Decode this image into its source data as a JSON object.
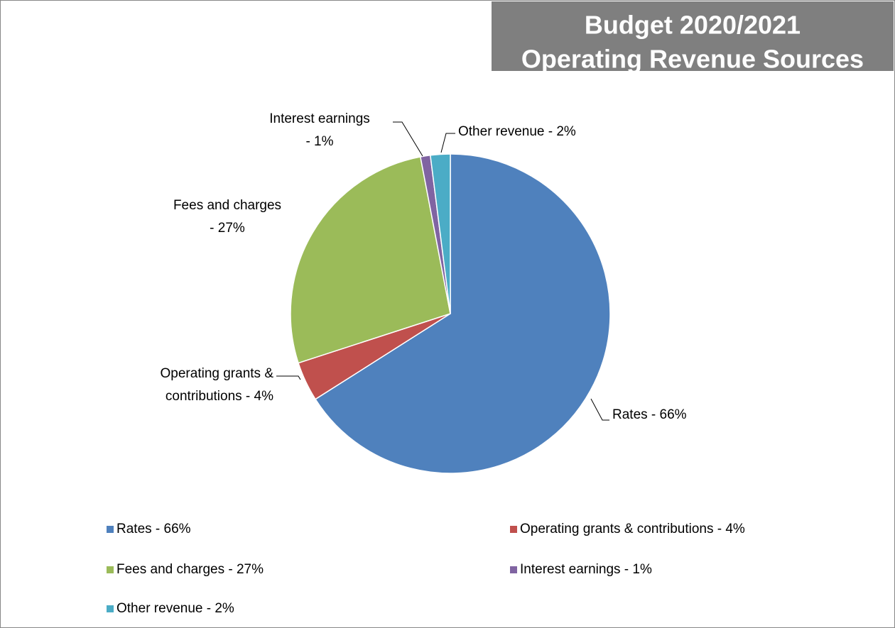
{
  "chart_data": {
    "type": "pie",
    "title": "Budget 2020/2021",
    "subtitle": "Operating Revenue Sources",
    "categories": [
      "Rates - 66%",
      "Operating grants & contributions - 4%",
      "Fees and charges - 27%",
      "Interest earnings - 1%",
      "Other revenue - 2%"
    ],
    "values": [
      66,
      4,
      27,
      1,
      2
    ],
    "colors": [
      "#4f81bd",
      "#c0504d",
      "#9bbb59",
      "#8064a2",
      "#4bacc6"
    ],
    "legend": "bottom"
  }
}
